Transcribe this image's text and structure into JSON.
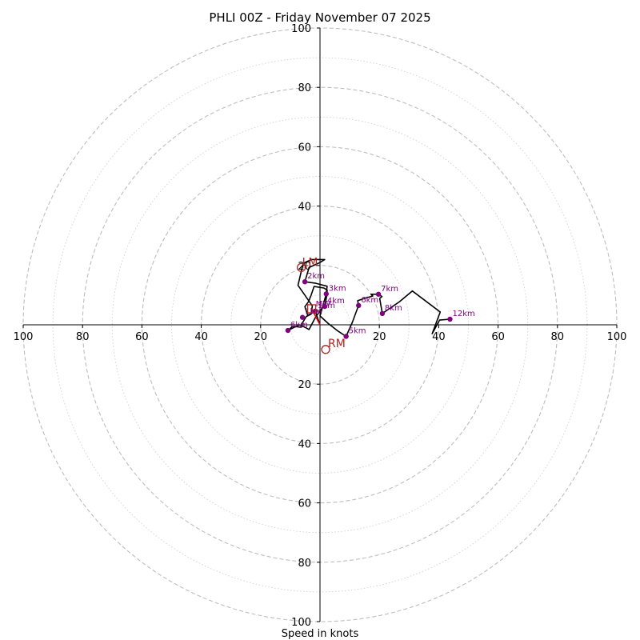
{
  "chart_data": {
    "type": "hodograph",
    "title": "PHLI 00Z - Friday November 07 2025",
    "xlabel": "Speed in knots",
    "max_speed": 100,
    "ring_step": 10,
    "major_rings": [
      20,
      40,
      60,
      80,
      100
    ],
    "x_tick_labels": [
      {
        "value": -100,
        "label": "100"
      },
      {
        "value": -80,
        "label": "80"
      },
      {
        "value": -60,
        "label": "60"
      },
      {
        "value": -40,
        "label": "40"
      },
      {
        "value": -20,
        "label": "20"
      },
      {
        "value": 20,
        "label": "20"
      },
      {
        "value": 40,
        "label": "40"
      },
      {
        "value": 60,
        "label": "60"
      },
      {
        "value": 80,
        "label": "80"
      },
      {
        "value": 100,
        "label": "100"
      }
    ],
    "y_tick_labels": [
      {
        "value": 100,
        "label": "100"
      },
      {
        "value": 80,
        "label": "80"
      },
      {
        "value": 60,
        "label": "60"
      },
      {
        "value": 40,
        "label": "40"
      },
      {
        "value": 20,
        "label": "20"
      },
      {
        "value": -20,
        "label": "20"
      },
      {
        "value": -40,
        "label": "40"
      },
      {
        "value": -60,
        "label": "60"
      },
      {
        "value": -80,
        "label": "80"
      },
      {
        "value": -100,
        "label": "100"
      }
    ],
    "hodograph": {
      "color": "#000000",
      "points": [
        {
          "u": 0.0,
          "v": 0.0
        },
        {
          "u": -1.6,
          "v": 4.6
        },
        {
          "u": -4.1,
          "v": 3.1
        },
        {
          "u": -5.1,
          "v": 6.1
        },
        {
          "u": -3.8,
          "v": 7.9
        },
        {
          "u": -3.0,
          "v": 10.0
        },
        {
          "u": -2.0,
          "v": 12.9
        },
        {
          "u": 1.3,
          "v": 12.4
        },
        {
          "u": 2.4,
          "v": 11.7
        },
        {
          "u": 2.4,
          "v": 10.4
        },
        {
          "u": 1.6,
          "v": 6.2
        },
        {
          "u": 0.9,
          "v": 5.9
        },
        {
          "u": -1.6,
          "v": 2.4
        },
        {
          "u": -3.7,
          "v": -1.6
        },
        {
          "u": -5.1,
          "v": -0.8
        },
        {
          "u": -7.0,
          "v": 0.0
        },
        {
          "u": -10.6,
          "v": -1.8
        },
        {
          "u": -9.3,
          "v": -0.5
        },
        {
          "u": -6.3,
          "v": -0.8
        },
        {
          "u": -5.9,
          "v": 0.7
        },
        {
          "u": -4.6,
          "v": 2.8
        },
        {
          "u": -3.0,
          "v": 3.6
        },
        {
          "u": -2.6,
          "v": 6.4
        },
        {
          "u": -7.4,
          "v": 13.3
        },
        {
          "u": -6.0,
          "v": 19.3
        },
        {
          "u": -5.1,
          "v": 21.0
        },
        {
          "u": -2.8,
          "v": 22.0
        },
        {
          "u": 1.6,
          "v": 22.0
        },
        {
          "u": 0.0,
          "v": 21.0
        },
        {
          "u": -3.7,
          "v": 19.3
        },
        {
          "u": -5.1,
          "v": 14.5
        },
        {
          "u": -1.4,
          "v": 14.0
        },
        {
          "u": 2.4,
          "v": 13.0
        },
        {
          "u": 2.1,
          "v": 10.4
        },
        {
          "u": 0.0,
          "v": 3.0
        },
        {
          "u": 2.7,
          "v": 0.5
        },
        {
          "u": 6.2,
          "v": -2.2
        },
        {
          "u": 8.8,
          "v": -3.9
        },
        {
          "u": 10.9,
          "v": 0.8
        },
        {
          "u": 13.0,
          "v": 6.5
        },
        {
          "u": 12.7,
          "v": 8.1
        },
        {
          "u": 15.0,
          "v": 8.9
        },
        {
          "u": 17.8,
          "v": 9.7
        },
        {
          "u": 17.2,
          "v": 10.3
        },
        {
          "u": 19.7,
          "v": 10.3
        },
        {
          "u": 20.9,
          "v": 9.5
        },
        {
          "u": 20.1,
          "v": 8.9
        },
        {
          "u": 21.0,
          "v": 3.8
        },
        {
          "u": 26.8,
          "v": 7.8
        },
        {
          "u": 31.1,
          "v": 11.4
        },
        {
          "u": 40.5,
          "v": 4.3
        },
        {
          "u": 37.8,
          "v": -3.0
        },
        {
          "u": 40.3,
          "v": 1.6
        },
        {
          "u": 43.8,
          "v": 1.9
        }
      ]
    },
    "height_markers": [
      {
        "label": "1km",
        "u": -1.6,
        "v": 4.6
      },
      {
        "label": "2km",
        "u": -5.1,
        "v": 14.5
      },
      {
        "label": "3km",
        "u": 2.1,
        "v": 10.4
      },
      {
        "label": "4km",
        "u": 1.6,
        "v": 6.2
      },
      {
        "label": "5km",
        "u": 8.8,
        "v": -3.9
      },
      {
        "label": "6km",
        "u": 13.0,
        "v": 6.5
      },
      {
        "label": "7km",
        "u": 19.7,
        "v": 10.3
      },
      {
        "label": "8km",
        "u": 21.0,
        "v": 3.8
      },
      {
        "label": "12km",
        "u": 43.8,
        "v": 1.9
      },
      {
        "label": "6km",
        "u": -10.8,
        "v": -1.9
      },
      {
        "label": "1km",
        "u": -5.9,
        "v": 2.5
      }
    ],
    "storm_motion": {
      "RM": {
        "label": "RM",
        "u": 1.9,
        "v": -8.3
      },
      "LM": {
        "label": "LM",
        "u": -6.3,
        "v": 19.3
      },
      "MW": {
        "label": "MW",
        "u": -2.8,
        "v": 5.4
      },
      "color": "#b22222"
    },
    "shear_vector": {
      "from_u": 0.0,
      "from_v": 0.0,
      "to_u": -2.8,
      "to_v": 5.4,
      "color": "#e00000"
    }
  }
}
